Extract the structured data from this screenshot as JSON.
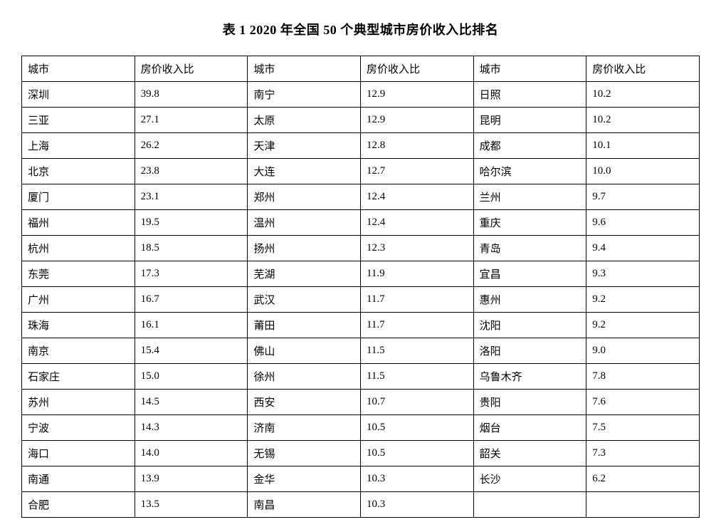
{
  "title": "表 1   2020 年全国 50 个典型城市房价收入比排名",
  "headers": {
    "city": "城市",
    "ratio": "房价收入比"
  },
  "table": {
    "border_color": "#000000",
    "background_color": "#ffffff",
    "font_size": 15,
    "title_fontsize": 18,
    "col_groups": 3,
    "rows_per_group": 17
  },
  "col1": [
    {
      "city": "深圳",
      "ratio": "39.8"
    },
    {
      "city": "三亚",
      "ratio": "27.1"
    },
    {
      "city": "上海",
      "ratio": "26.2"
    },
    {
      "city": "北京",
      "ratio": "23.8"
    },
    {
      "city": "厦门",
      "ratio": "23.1"
    },
    {
      "city": "福州",
      "ratio": "19.5"
    },
    {
      "city": "杭州",
      "ratio": "18.5"
    },
    {
      "city": "东莞",
      "ratio": "17.3"
    },
    {
      "city": "广州",
      "ratio": "16.7"
    },
    {
      "city": "珠海",
      "ratio": "16.1"
    },
    {
      "city": "南京",
      "ratio": "15.4"
    },
    {
      "city": "石家庄",
      "ratio": "15.0"
    },
    {
      "city": "苏州",
      "ratio": "14.5"
    },
    {
      "city": "宁波",
      "ratio": "14.3"
    },
    {
      "city": "海口",
      "ratio": "14.0"
    },
    {
      "city": "南通",
      "ratio": "13.9"
    },
    {
      "city": "合肥",
      "ratio": "13.5"
    }
  ],
  "col2": [
    {
      "city": "南宁",
      "ratio": "12.9"
    },
    {
      "city": "太原",
      "ratio": "12.9"
    },
    {
      "city": "天津",
      "ratio": "12.8"
    },
    {
      "city": "大连",
      "ratio": "12.7"
    },
    {
      "city": "郑州",
      "ratio": "12.4"
    },
    {
      "city": "温州",
      "ratio": "12.4"
    },
    {
      "city": "扬州",
      "ratio": "12.3"
    },
    {
      "city": "芜湖",
      "ratio": "11.9"
    },
    {
      "city": "武汉",
      "ratio": "11.7"
    },
    {
      "city": "莆田",
      "ratio": "11.7"
    },
    {
      "city": "佛山",
      "ratio": "11.5"
    },
    {
      "city": "徐州",
      "ratio": "11.5"
    },
    {
      "city": "西安",
      "ratio": "10.7"
    },
    {
      "city": "济南",
      "ratio": "10.5"
    },
    {
      "city": "无锡",
      "ratio": "10.5"
    },
    {
      "city": "金华",
      "ratio": "10.3"
    },
    {
      "city": "南昌",
      "ratio": "10.3"
    }
  ],
  "col3": [
    {
      "city": "日照",
      "ratio": "10.2"
    },
    {
      "city": "昆明",
      "ratio": "10.2"
    },
    {
      "city": "成都",
      "ratio": "10.1"
    },
    {
      "city": "哈尔滨",
      "ratio": "10.0"
    },
    {
      "city": "兰州",
      "ratio": "9.7"
    },
    {
      "city": "重庆",
      "ratio": "9.6"
    },
    {
      "city": "青岛",
      "ratio": "9.4"
    },
    {
      "city": "宜昌",
      "ratio": "9.3"
    },
    {
      "city": "惠州",
      "ratio": "9.2"
    },
    {
      "city": "沈阳",
      "ratio": "9.2"
    },
    {
      "city": "洛阳",
      "ratio": "9.0"
    },
    {
      "city": "乌鲁木齐",
      "ratio": "7.8"
    },
    {
      "city": "贵阳",
      "ratio": "7.6"
    },
    {
      "city": "烟台",
      "ratio": "7.5"
    },
    {
      "city": "韶关",
      "ratio": "7.3"
    },
    {
      "city": "长沙",
      "ratio": "6.2"
    },
    {
      "city": "",
      "ratio": ""
    }
  ]
}
